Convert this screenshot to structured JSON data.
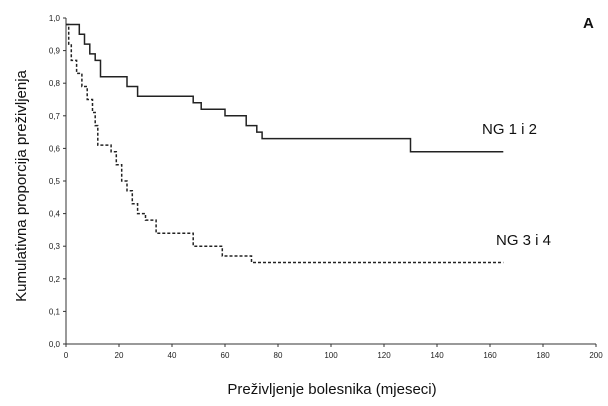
{
  "panel_label": "A",
  "chart_data": {
    "type": "line",
    "xlabel": "Preživljenje bolesnika (mjeseci)",
    "ylabel": "Kumulativna proporcija preživljenja",
    "xlim": [
      0,
      200
    ],
    "ylim": [
      0,
      1.0
    ],
    "x_ticks": [
      0,
      20,
      40,
      60,
      80,
      100,
      120,
      140,
      160,
      180,
      200
    ],
    "y_ticks": [
      "0,0",
      "0,1",
      "0,2",
      "0,3",
      "0,4",
      "0,5",
      "0,6",
      "0,7",
      "0,8",
      "0,9",
      "1,0"
    ],
    "grid": false,
    "legend": "inline labels",
    "series": [
      {
        "name": "NG 1 i 2",
        "style": "solid",
        "color": "#222222",
        "points": [
          [
            0,
            0.98
          ],
          [
            5,
            0.98
          ],
          [
            5,
            0.95
          ],
          [
            7,
            0.95
          ],
          [
            7,
            0.92
          ],
          [
            9,
            0.92
          ],
          [
            9,
            0.89
          ],
          [
            11,
            0.89
          ],
          [
            11,
            0.87
          ],
          [
            13,
            0.87
          ],
          [
            13,
            0.82
          ],
          [
            23,
            0.82
          ],
          [
            23,
            0.79
          ],
          [
            27,
            0.79
          ],
          [
            27,
            0.76
          ],
          [
            48,
            0.76
          ],
          [
            48,
            0.74
          ],
          [
            51,
            0.74
          ],
          [
            51,
            0.72
          ],
          [
            60,
            0.72
          ],
          [
            60,
            0.7
          ],
          [
            68,
            0.7
          ],
          [
            68,
            0.67
          ],
          [
            72,
            0.67
          ],
          [
            72,
            0.65
          ],
          [
            74,
            0.65
          ],
          [
            74,
            0.63
          ],
          [
            130,
            0.63
          ],
          [
            130,
            0.59
          ],
          [
            165,
            0.59
          ]
        ]
      },
      {
        "name": "NG 3 i 4",
        "style": "dashed",
        "color": "#222222",
        "points": [
          [
            0,
            0.98
          ],
          [
            1,
            0.98
          ],
          [
            1,
            0.92
          ],
          [
            2,
            0.92
          ],
          [
            2,
            0.87
          ],
          [
            4,
            0.87
          ],
          [
            4,
            0.83
          ],
          [
            6,
            0.83
          ],
          [
            6,
            0.79
          ],
          [
            8,
            0.79
          ],
          [
            8,
            0.75
          ],
          [
            10,
            0.75
          ],
          [
            10,
            0.71
          ],
          [
            11,
            0.71
          ],
          [
            11,
            0.67
          ],
          [
            12,
            0.67
          ],
          [
            12,
            0.61
          ],
          [
            17,
            0.61
          ],
          [
            17,
            0.59
          ],
          [
            19,
            0.59
          ],
          [
            19,
            0.55
          ],
          [
            21,
            0.55
          ],
          [
            21,
            0.5
          ],
          [
            23,
            0.5
          ],
          [
            23,
            0.47
          ],
          [
            25,
            0.47
          ],
          [
            25,
            0.43
          ],
          [
            27,
            0.43
          ],
          [
            27,
            0.4
          ],
          [
            30,
            0.4
          ],
          [
            30,
            0.38
          ],
          [
            34,
            0.38
          ],
          [
            34,
            0.34
          ],
          [
            48,
            0.34
          ],
          [
            48,
            0.3
          ],
          [
            59,
            0.3
          ],
          [
            59,
            0.27
          ],
          [
            70,
            0.27
          ],
          [
            70,
            0.25
          ],
          [
            165,
            0.25
          ]
        ]
      }
    ]
  }
}
